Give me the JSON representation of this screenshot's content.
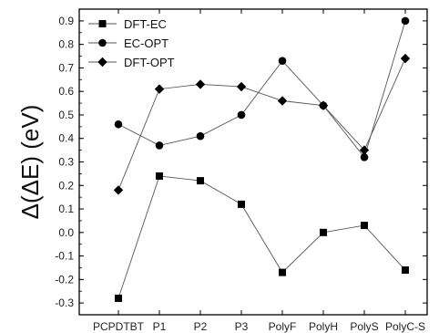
{
  "chart_data": {
    "type": "line",
    "title": "",
    "xlabel": "",
    "ylabel": "Δ(ΔE) (eV)",
    "categories": [
      "PCPDTBT",
      "P1",
      "P2",
      "P3",
      "PolyF",
      "PolyH",
      "PolyS",
      "PolyC-S"
    ],
    "ylim": [
      -0.35,
      0.95
    ],
    "yticks": [
      -0.3,
      -0.2,
      -0.1,
      0.0,
      0.1,
      0.2,
      0.3,
      0.4,
      0.5,
      0.6,
      0.7,
      0.8,
      0.9
    ],
    "ytick_labels": [
      "-0.3",
      "-0.2",
      "-0.1",
      "0.0",
      "0.1",
      "0.2",
      "0.3",
      "0.4",
      "0.5",
      "0.6",
      "0.7",
      "0.8",
      "0.9"
    ],
    "grid": false,
    "legend_position": "top-left",
    "series": [
      {
        "name": "DFT-EC",
        "marker": "square",
        "color": "#000000",
        "values": [
          -0.28,
          0.24,
          0.22,
          0.12,
          -0.17,
          0.0,
          0.03,
          -0.16
        ]
      },
      {
        "name": "EC-OPT",
        "marker": "circle",
        "color": "#000000",
        "values": [
          0.46,
          0.37,
          0.41,
          0.5,
          0.73,
          0.54,
          0.32,
          0.9
        ]
      },
      {
        "name": "DFT-OPT",
        "marker": "diamond",
        "color": "#000000",
        "values": [
          0.18,
          0.61,
          0.63,
          0.62,
          0.56,
          0.54,
          0.35,
          0.74
        ]
      }
    ]
  }
}
